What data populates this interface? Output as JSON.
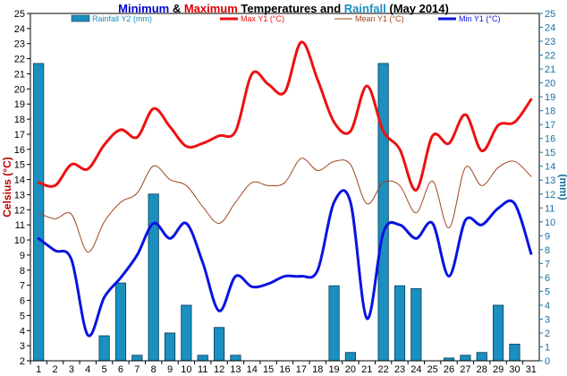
{
  "chart_data": {
    "type": "line",
    "title_parts": [
      {
        "text": "Minimum",
        "color": "#0000cc"
      },
      {
        "text": " & ",
        "color": "#000000"
      },
      {
        "text": "Maximum",
        "color": "#dd0000"
      },
      {
        "text": " Temperatures and ",
        "color": "#000000"
      },
      {
        "text": "Rainfall",
        "color": "#1a8fc0"
      },
      {
        "text": " (May 2014)",
        "color": "#000000"
      }
    ],
    "ylabel": "Celsius (°C)",
    "y2label": "(mm)",
    "ylim": [
      2,
      25
    ],
    "y2lim": [
      0,
      25
    ],
    "x": [
      1,
      2,
      3,
      4,
      5,
      6,
      7,
      8,
      9,
      10,
      11,
      12,
      13,
      14,
      15,
      16,
      17,
      18,
      19,
      20,
      21,
      22,
      23,
      24,
      25,
      26,
      27,
      28,
      29,
      30,
      31
    ],
    "y_ticks": [
      2,
      3,
      4,
      5,
      6,
      7,
      8,
      9,
      10,
      11,
      12,
      13,
      14,
      15,
      16,
      17,
      18,
      19,
      20,
      21,
      22,
      23,
      24,
      25
    ],
    "y2_ticks": [
      0,
      1,
      2,
      3,
      4,
      5,
      6,
      7,
      8,
      9,
      10,
      11,
      12,
      13,
      14,
      15,
      16,
      17,
      18,
      19,
      20,
      21,
      22,
      23,
      24,
      25
    ],
    "legend_position": "top",
    "grid": false,
    "series": [
      {
        "name": "Rainfall Y2 (mm)",
        "kind": "bar",
        "axis": "right",
        "color": "#1a8fc0",
        "values": [
          21.4,
          0,
          0,
          0,
          1.8,
          5.6,
          0.4,
          12,
          2,
          4,
          0.4,
          2.4,
          0.4,
          0,
          0,
          0,
          0,
          0,
          5.4,
          0.6,
          0,
          21.4,
          5.4,
          5.2,
          0,
          0.2,
          0.4,
          0.6,
          4,
          1.2,
          0
        ]
      },
      {
        "name": "Max Y1 (°C)",
        "kind": "line",
        "axis": "left",
        "color": "#ee1111",
        "width": 3,
        "values": [
          13.8,
          13.6,
          15.0,
          14.7,
          16.3,
          17.3,
          16.8,
          18.7,
          17.5,
          16.2,
          16.4,
          16.9,
          17.2,
          21.0,
          20.3,
          19.8,
          23.1,
          20.6,
          17.8,
          17.2,
          20.2,
          17.2,
          16.0,
          13.3,
          16.9,
          16.4,
          18.3,
          15.9,
          17.6,
          17.8,
          19.3
        ]
      },
      {
        "name": "Mean Y1 (°C)",
        "kind": "line",
        "axis": "left",
        "color": "#a0461c",
        "width": 1,
        "values": [
          11.8,
          11.4,
          11.7,
          9.2,
          11.2,
          12.5,
          13.1,
          14.9,
          14.0,
          13.6,
          12.2,
          11.1,
          12.5,
          13.8,
          13.6,
          13.8,
          15.4,
          14.6,
          15.2,
          15.0,
          12.4,
          13.8,
          13.6,
          11.8,
          13.9,
          10.8,
          14.8,
          13.6,
          14.8,
          15.2,
          14.2
        ]
      },
      {
        "name": "Min Y1 (°C)",
        "kind": "line",
        "axis": "left",
        "color": "#0a14e0",
        "width": 3,
        "values": [
          10.1,
          9.3,
          8.7,
          3.7,
          6.2,
          7.5,
          9.0,
          11.1,
          10.1,
          11.1,
          8.5,
          5.3,
          7.6,
          6.9,
          7.1,
          7.6,
          7.6,
          8.0,
          12.5,
          12.5,
          4.8,
          10.5,
          11.0,
          10.1,
          11.1,
          7.6,
          11.3,
          11.0,
          12.1,
          12.4,
          9.1
        ]
      }
    ]
  }
}
